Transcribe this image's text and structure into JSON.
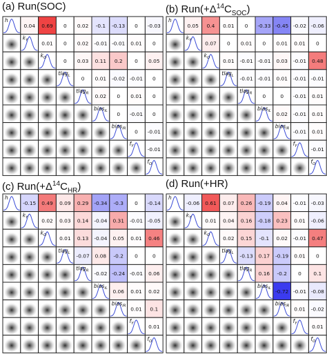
{
  "colors": {
    "positive_max": "#ee3333",
    "negative_max": "#3333ee",
    "neutral": "#ffffff",
    "cell_border": "#222222",
    "kde_line": "#3a4bd6",
    "density_dark": "#222222"
  },
  "variables": [
    "h",
    "k_Y",
    "k_O",
    "tlag_L",
    "tlag_R",
    "bias_iL",
    "bias_iR",
    "f_Y",
    "f_O"
  ],
  "variable_labels": [
    {
      "main": "h",
      "sub": ""
    },
    {
      "main": "k",
      "sub": "Y"
    },
    {
      "main": "k",
      "sub": "O"
    },
    {
      "main": "tlag",
      "sub": "L"
    },
    {
      "main": "tlag",
      "sub": "R"
    },
    {
      "main": "bias",
      "sub": "iL"
    },
    {
      "main": "bias",
      "sub": "iR"
    },
    {
      "main": "f",
      "sub": "Y"
    },
    {
      "main": "f",
      "sub": "O"
    }
  ],
  "chart_data": [
    {
      "type": "heatmap",
      "panel_label": "(a)",
      "title_pre": "Run(SOC)",
      "title_delta": "",
      "title_sup": "",
      "title_base": "",
      "title_sub": "",
      "title_post": "",
      "correlations": [
        [
          0.04,
          0.69,
          0,
          0.02,
          -0.1,
          -0.13,
          0,
          -0.03
        ],
        [
          0.01,
          0,
          0.02,
          -0.01,
          -0.01,
          0.01,
          0
        ],
        [
          0,
          0.03,
          0.11,
          0.2,
          0,
          0.05
        ],
        [
          0,
          0.01,
          -0.02,
          -0.01,
          0
        ],
        [
          0.02,
          0,
          0.01,
          0
        ],
        [
          0,
          -0.01,
          0
        ],
        [
          0,
          -0.01
        ],
        [
          -0.01
        ]
      ]
    },
    {
      "type": "heatmap",
      "panel_label": "(b)",
      "title_pre": "Run(+",
      "title_delta": "Δ",
      "title_sup": "14",
      "title_base": "C",
      "title_sub": "SOC",
      "title_post": ")",
      "correlations": [
        [
          0.05,
          0.4,
          0.01,
          0,
          -0.33,
          -0.45,
          -0.02,
          -0.06
        ],
        [
          0.07,
          0,
          0.01,
          0,
          0.01,
          0.01,
          0
        ],
        [
          0.01,
          -0.01,
          -0.01,
          0.03,
          -0.01,
          0.48
        ],
        [
          -0.01,
          -0.01,
          0.01,
          -0.01,
          -0.01
        ],
        [
          0,
          0,
          -0.01,
          0.01
        ],
        [
          0.02,
          -0.01,
          0.01
        ],
        [
          -0.01,
          0.01
        ],
        [
          -0.01
        ]
      ]
    },
    {
      "type": "heatmap",
      "panel_label": "(c)",
      "title_pre": "Run(+",
      "title_delta": "Δ",
      "title_sup": "14",
      "title_base": "C",
      "title_sub": "HR",
      "title_post": ")",
      "correlations": [
        [
          -0.15,
          0.49,
          0.09,
          0.29,
          -0.34,
          -0.3,
          0,
          -0.14
        ],
        [
          0.02,
          0.03,
          0.14,
          -0.04,
          0.31,
          -0.01,
          -0.05
        ],
        [
          0.01,
          0.13,
          -0.04,
          0.05,
          0.01,
          0.46
        ],
        [
          -0.07,
          0.08,
          -0.2,
          0,
          0
        ],
        [
          -0.02,
          -0.24,
          -0.01,
          0.06
        ],
        [
          0.06,
          0.01,
          0.02
        ],
        [
          0.01,
          0.1
        ],
        [
          0.01
        ]
      ]
    },
    {
      "type": "heatmap",
      "panel_label": "(d)",
      "title_pre": "Run(+HR)",
      "title_delta": "",
      "title_sup": "",
      "title_base": "",
      "title_sub": "",
      "title_post": "",
      "correlations": [
        [
          -0.06,
          0.61,
          0.07,
          0.26,
          -0.19,
          0.04,
          -0.01,
          -0.03
        ],
        [
          0.01,
          0.04,
          0.16,
          -0.18,
          0.23,
          0.01,
          -0.06
        ],
        [
          0.02,
          0.15,
          -0.1,
          0.02,
          -0.01,
          0.47
        ],
        [
          -0.13,
          0.17,
          -0.19,
          0.01,
          0
        ],
        [
          0.16,
          -0.2,
          0,
          0.1
        ],
        [
          -0.72,
          -0.01,
          -0.08
        ],
        [
          0.01,
          -0.02
        ],
        [
          0.01
        ]
      ]
    }
  ]
}
